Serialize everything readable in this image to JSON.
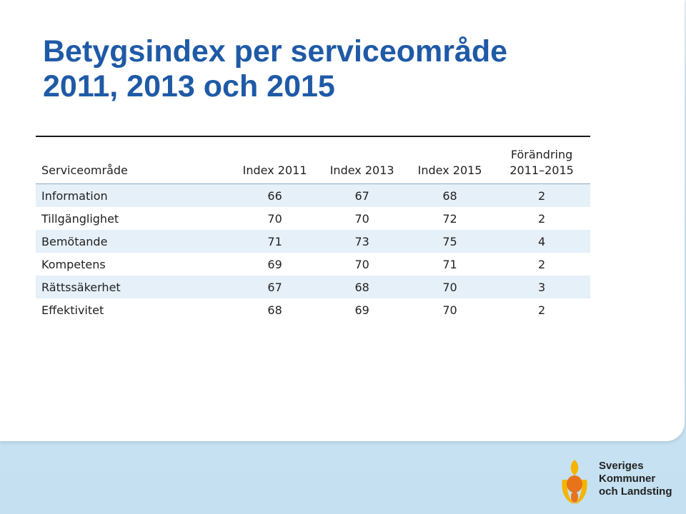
{
  "title": {
    "line1": "Betygsindex per serviceområde",
    "line2": "2011, 2013 och 2015"
  },
  "table": {
    "headers": {
      "service": "Serviceområde",
      "index_2011": "Index 2011",
      "index_2013": "Index 2013",
      "index_2015": "Index 2015",
      "change_line1": "Förändring",
      "change_line2": "2011–2015"
    },
    "rows": [
      {
        "area": "Information",
        "i2011": "66",
        "i2013": "67",
        "i2015": "68",
        "change": "2"
      },
      {
        "area": "Tillgänglighet",
        "i2011": "70",
        "i2013": "70",
        "i2015": "72",
        "change": "2"
      },
      {
        "area": "Bemötande",
        "i2011": "71",
        "i2013": "73",
        "i2015": "75",
        "change": "4"
      },
      {
        "area": "Kompetens",
        "i2011": "69",
        "i2013": "70",
        "i2015": "71",
        "change": "2"
      },
      {
        "area": "Rättssäkerhet",
        "i2011": "67",
        "i2013": "68",
        "i2015": "70",
        "change": "3"
      },
      {
        "area": "Effektivitet",
        "i2011": "68",
        "i2013": "69",
        "i2015": "70",
        "change": "2"
      }
    ]
  },
  "logo": {
    "line1": "Sveriges",
    "line2": "Kommuner",
    "line3": "och Landsting",
    "color_yellow": "#f5b400",
    "color_orange": "#e8731a"
  },
  "colors": {
    "title": "#1f5aa6",
    "row_shade": "#e6f0f9",
    "background": "#c4e0f1"
  }
}
